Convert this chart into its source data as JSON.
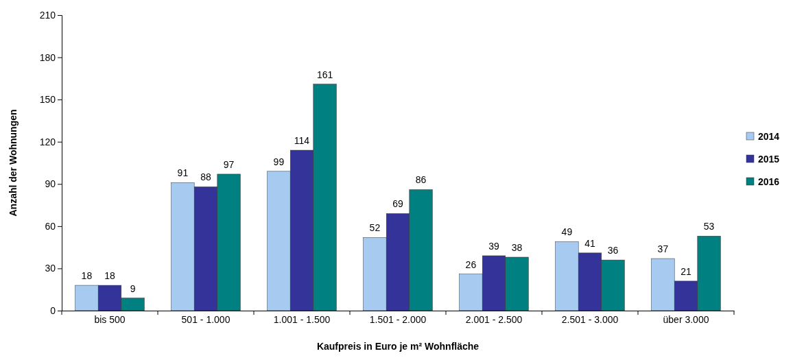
{
  "chart_data": {
    "type": "bar",
    "xlabel": "Kaufpreis in Euro je m² Wohnfläche",
    "ylabel": "Anzahl der Wohnungen",
    "categories": [
      "bis 500",
      "501 - 1.000",
      "1.001 - 1.500",
      "1.501 - 2.000",
      "2.001 - 2.500",
      "2.501 - 3.000",
      "über 3.000"
    ],
    "series": [
      {
        "name": "2014",
        "color": "#a6caf0",
        "values": [
          18,
          91,
          99,
          52,
          26,
          49,
          37
        ]
      },
      {
        "name": "2015",
        "color": "#333399",
        "values": [
          18,
          88,
          114,
          69,
          39,
          41,
          21
        ]
      },
      {
        "name": "2016",
        "color": "#008080",
        "values": [
          9,
          97,
          161,
          86,
          38,
          36,
          53
        ]
      }
    ],
    "ylim": [
      0,
      210
    ],
    "yticks": [
      0,
      30,
      60,
      90,
      120,
      150,
      180,
      210
    ],
    "data_labels": true,
    "legend": "right",
    "grid": false
  }
}
